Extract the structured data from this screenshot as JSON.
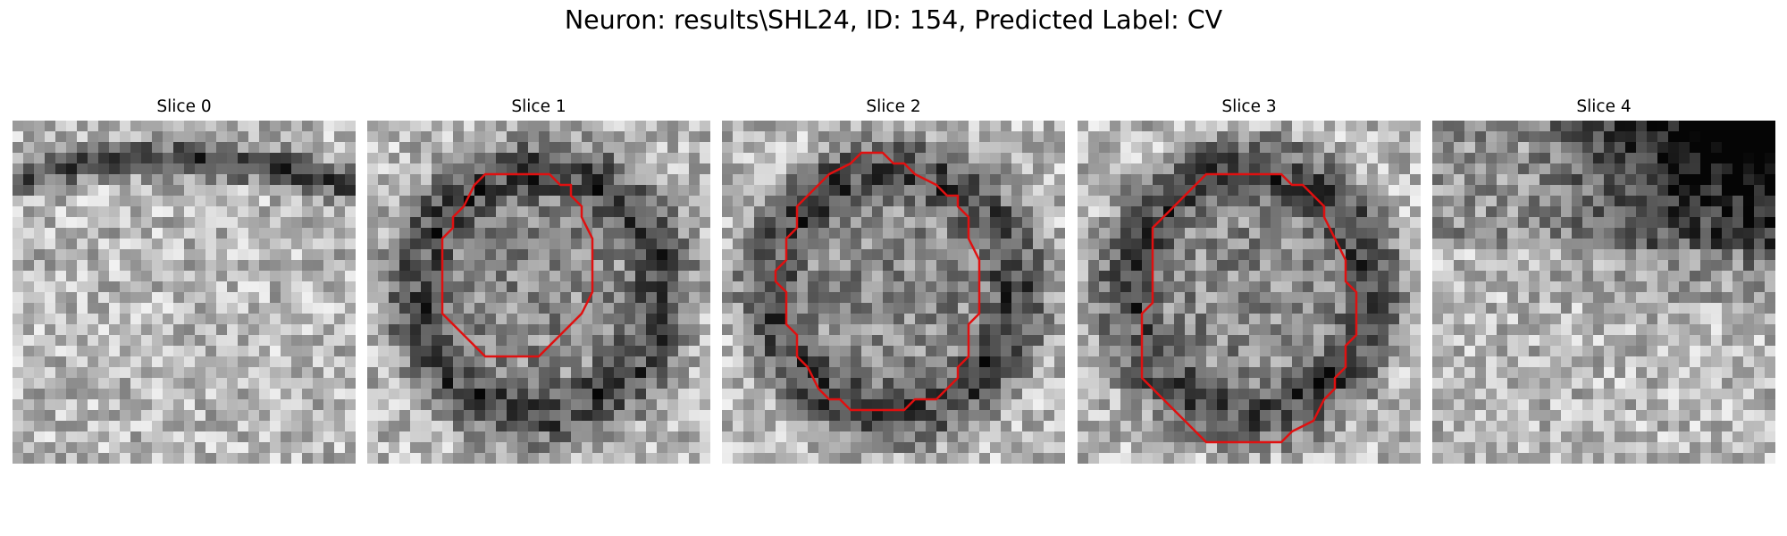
{
  "figure": {
    "title": "Neuron: results\\SHL24, ID: 154, Predicted Label: CV",
    "contour_color": "#e01010"
  },
  "slices": [
    {
      "title": "Slice 0",
      "has_contour": false,
      "texture": {
        "seed": 11,
        "darkness": "top-band"
      }
    },
    {
      "title": "Slice 1",
      "has_contour": true,
      "texture": {
        "seed": 23,
        "darkness": "ring"
      }
    },
    {
      "title": "Slice 2",
      "has_contour": true,
      "texture": {
        "seed": 37,
        "darkness": "ring"
      }
    },
    {
      "title": "Slice 3",
      "has_contour": true,
      "texture": {
        "seed": 41,
        "darkness": "ring"
      }
    },
    {
      "title": "Slice 4",
      "has_contour": false,
      "texture": {
        "seed": 53,
        "darkness": "top-right"
      }
    }
  ]
}
